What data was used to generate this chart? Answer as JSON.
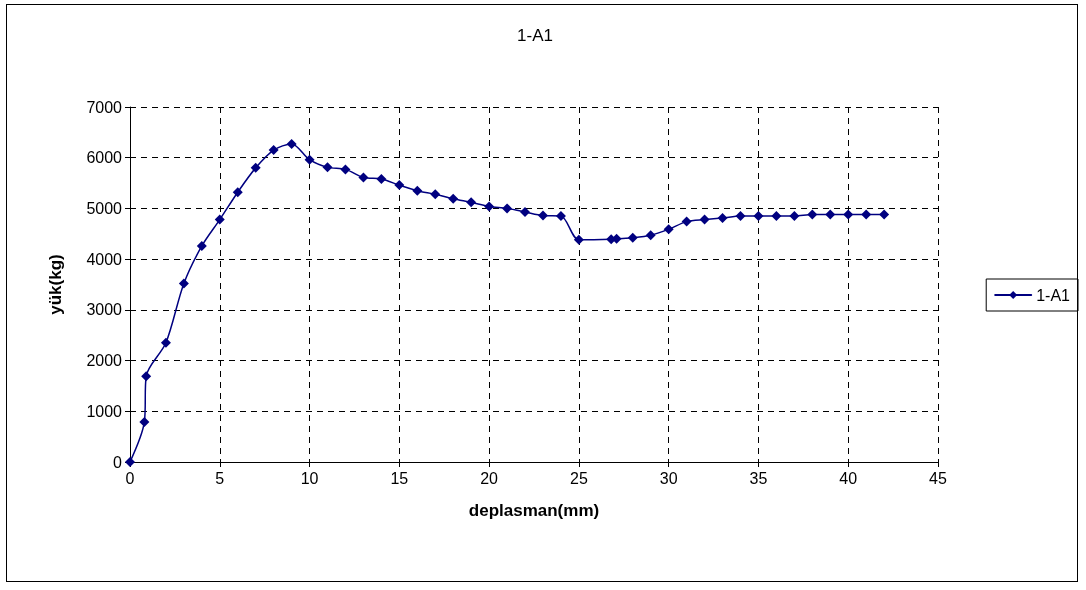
{
  "chart_data": {
    "type": "line",
    "title": "1-A1",
    "xlabel": "deplasman(mm)",
    "ylabel": "yük(kg)",
    "xlim": [
      0,
      45
    ],
    "xticks": [
      0,
      5,
      10,
      15,
      20,
      25,
      30,
      35,
      40,
      45
    ],
    "ylim": [
      0,
      7000
    ],
    "yticks": [
      0,
      1000,
      2000,
      3000,
      4000,
      5000,
      6000,
      7000
    ],
    "grid": true,
    "legend": "right",
    "marker": "diamond",
    "line_style": "solid",
    "series": [
      {
        "name": "1-A1",
        "color": "#000080",
        "x": [
          0,
          0.8,
          0.9,
          2,
          3,
          4,
          5,
          6,
          7,
          8,
          9,
          10,
          11,
          12,
          13,
          14,
          15,
          16,
          17,
          18,
          19,
          20,
          21,
          22,
          23,
          24,
          25,
          26.8,
          27.1,
          28,
          29,
          30,
          31,
          32,
          33,
          34,
          35,
          36,
          37,
          38,
          39,
          40,
          41,
          42
        ],
        "values": [
          0,
          790,
          1690,
          2350,
          3520,
          4260,
          4780,
          5320,
          5800,
          6150,
          6270,
          5960,
          5810,
          5770,
          5610,
          5580,
          5460,
          5350,
          5280,
          5190,
          5120,
          5040,
          5000,
          4930,
          4860,
          4850,
          4380,
          4390,
          4400,
          4420,
          4470,
          4590,
          4740,
          4780,
          4810,
          4850,
          4850,
          4850,
          4850,
          4880,
          4880,
          4880,
          4880,
          4880
        ]
      }
    ]
  }
}
